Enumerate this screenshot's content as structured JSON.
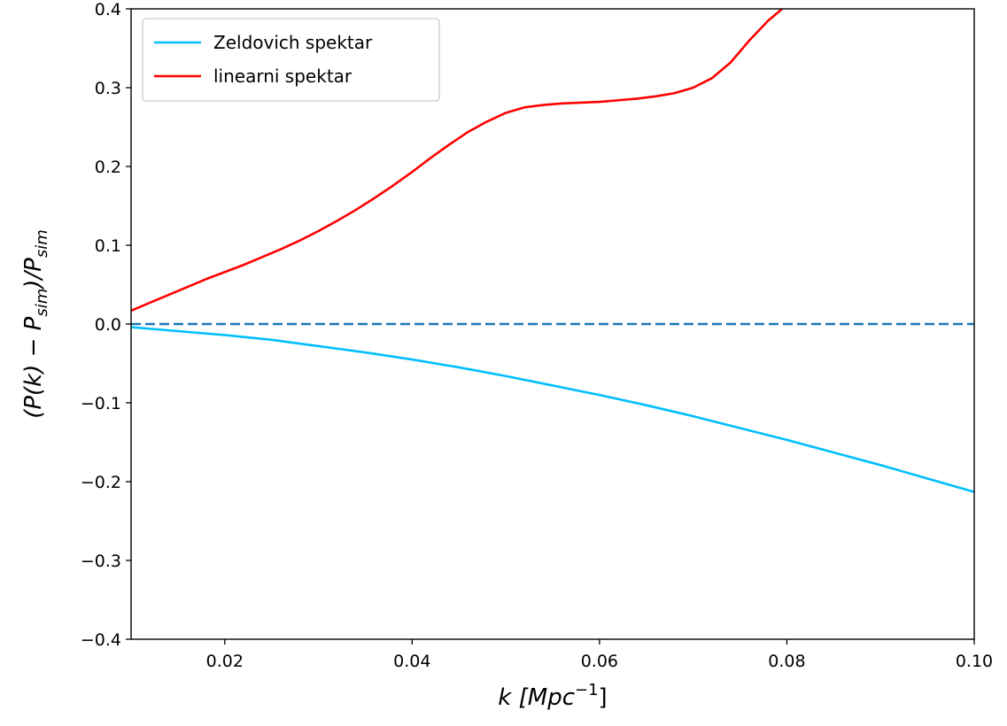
{
  "chart_data": {
    "type": "line",
    "title": "",
    "xlabel": {
      "main": "k [Mpc",
      "sup": "−1",
      "tail": "]"
    },
    "ylabel": {
      "open": "(P(k) − P",
      "sub1": "sim",
      "mid": ")/P",
      "sub2": "sim"
    },
    "xlim": [
      0.01,
      0.1
    ],
    "ylim": [
      -0.4,
      0.4
    ],
    "xticks": [
      0.02,
      0.04,
      0.06,
      0.08,
      0.1
    ],
    "xtick_labels": [
      "0.02",
      "0.04",
      "0.06",
      "0.08",
      "0.10"
    ],
    "yticks": [
      -0.4,
      -0.3,
      -0.2,
      -0.1,
      0.0,
      0.1,
      0.2,
      0.3,
      0.4
    ],
    "ytick_labels": [
      "−0.4",
      "−0.3",
      "−0.2",
      "−0.1",
      "0.0",
      "0.1",
      "0.2",
      "0.3",
      "0.4"
    ],
    "grid": false,
    "legend_position": "upper-left",
    "series": [
      {
        "name": "Zeldovich spektar",
        "color": "#00bfff",
        "style": "solid",
        "x": [
          0.01,
          0.015,
          0.02,
          0.025,
          0.03,
          0.035,
          0.04,
          0.045,
          0.05,
          0.055,
          0.06,
          0.065,
          0.07,
          0.075,
          0.08,
          0.085,
          0.09,
          0.095,
          0.1
        ],
        "y": [
          -0.004,
          -0.009,
          -0.014,
          -0.02,
          -0.028,
          -0.036,
          -0.045,
          -0.055,
          -0.066,
          -0.078,
          -0.09,
          -0.103,
          -0.117,
          -0.132,
          -0.147,
          -0.163,
          -0.179,
          -0.196,
          -0.213
        ]
      },
      {
        "name": "linearni spektar",
        "color": "#ff0000",
        "style": "solid",
        "x": [
          0.01,
          0.012,
          0.014,
          0.016,
          0.018,
          0.02,
          0.022,
          0.024,
          0.026,
          0.028,
          0.03,
          0.032,
          0.034,
          0.036,
          0.038,
          0.04,
          0.042,
          0.044,
          0.046,
          0.048,
          0.05,
          0.052,
          0.054,
          0.056,
          0.058,
          0.06,
          0.062,
          0.064,
          0.066,
          0.068,
          0.07,
          0.072,
          0.074,
          0.076,
          0.078,
          0.0795
        ],
        "y": [
          0.017,
          0.027,
          0.037,
          0.047,
          0.057,
          0.066,
          0.075,
          0.085,
          0.095,
          0.106,
          0.118,
          0.131,
          0.145,
          0.16,
          0.176,
          0.193,
          0.211,
          0.228,
          0.244,
          0.257,
          0.268,
          0.275,
          0.278,
          0.28,
          0.281,
          0.282,
          0.284,
          0.286,
          0.289,
          0.293,
          0.3,
          0.312,
          0.332,
          0.36,
          0.385,
          0.4
        ]
      },
      {
        "name": "",
        "color": "#1f77b4",
        "style": "dashed",
        "x": [
          0.01,
          0.1
        ],
        "y": [
          0.0,
          0.0
        ]
      }
    ]
  }
}
